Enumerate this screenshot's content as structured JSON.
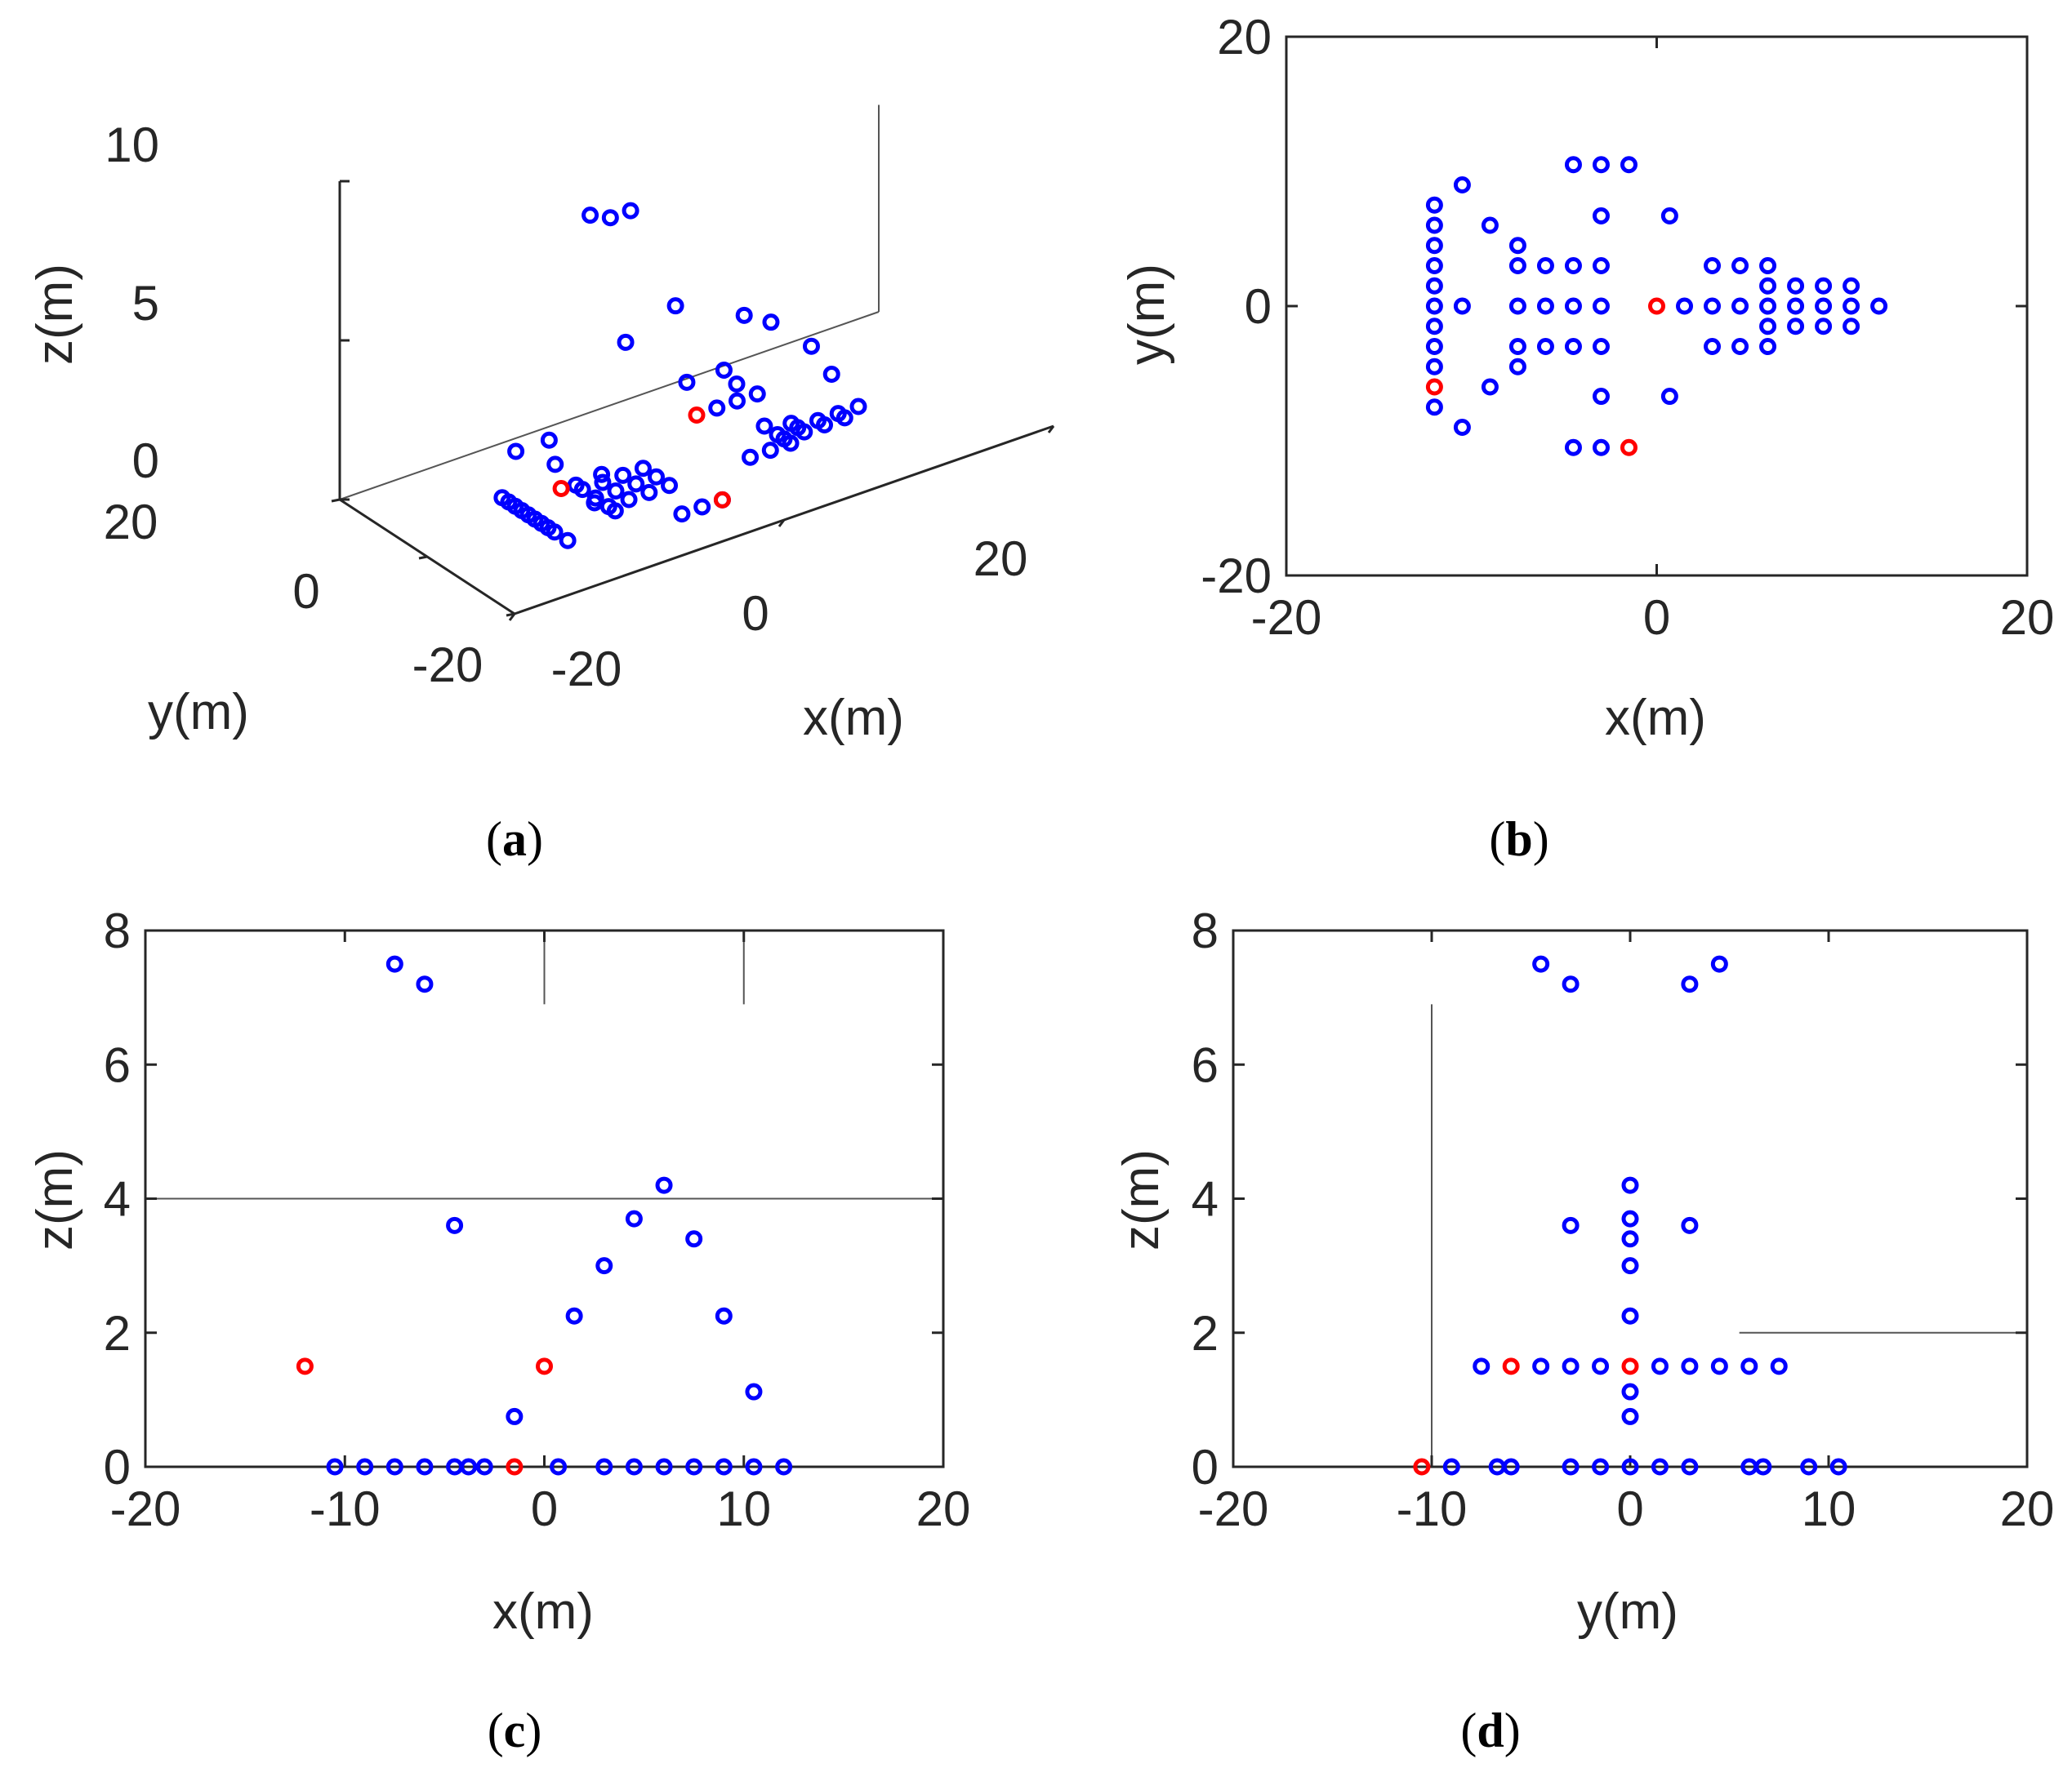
{
  "colors": {
    "normal": "#0000ff",
    "highlight": "#ff0000",
    "axis": "#262626"
  },
  "chart_data": [
    {
      "id": "a",
      "type": "scatter",
      "caption": "a",
      "projection": "3d",
      "xlabel": "x(m)",
      "ylabel": "y(m)",
      "zlabel": "z(m)",
      "xlim": [
        -20,
        20
      ],
      "ylim": [
        -20,
        20
      ],
      "zlim": [
        0,
        10
      ],
      "xticks": [
        "-20",
        "0",
        "20"
      ],
      "yticks": [
        "-20",
        "0",
        "20"
      ],
      "zticks": [
        "0",
        "5",
        "10"
      ],
      "points": {
        "normal": [
          [
            -12,
            7.5,
            0
          ],
          [
            -12,
            6,
            0
          ],
          [
            -12,
            4.5,
            0
          ],
          [
            -12,
            3,
            0
          ],
          [
            -12,
            1.5,
            0
          ],
          [
            -12,
            0,
            0
          ],
          [
            -12,
            -1.5,
            0
          ],
          [
            -12,
            -3,
            0
          ],
          [
            -12,
            -4.5,
            0
          ],
          [
            -12,
            -7.5,
            0
          ],
          [
            -10.5,
            9,
            1.1
          ],
          [
            -10.5,
            0,
            1.5
          ],
          [
            -10.5,
            -9,
            1.1
          ],
          [
            -9,
            6,
            1.5
          ],
          [
            -9,
            -6,
            1.5
          ],
          [
            -7.5,
            4.5,
            0
          ],
          [
            -7.5,
            3,
            0
          ],
          [
            -7.5,
            0,
            0
          ],
          [
            -7.5,
            -3,
            0
          ],
          [
            -7.5,
            -4.5,
            0
          ],
          [
            -6,
            3,
            0
          ],
          [
            -6,
            0,
            0
          ],
          [
            -6,
            -3,
            0
          ],
          [
            -4.5,
            3,
            0
          ],
          [
            -4.5,
            0,
            0
          ],
          [
            -4.5,
            -3,
            0
          ],
          [
            -3,
            3,
            0
          ],
          [
            -3,
            0,
            0
          ],
          [
            -3,
            -3,
            0
          ],
          [
            -4.5,
            10.5,
            7.5
          ],
          [
            -3,
            10.5,
            7.2
          ],
          [
            -1.5,
            10.5,
            7.2
          ],
          [
            -1.5,
            -10.5,
            0
          ],
          [
            -3,
            7,
            3.6
          ],
          [
            -3,
            -7,
            3.6
          ],
          [
            -4.5,
            -10.5,
            0
          ],
          [
            -3,
            -10.5,
            0
          ],
          [
            0.7,
            7,
            4.2
          ],
          [
            0.7,
            -7,
            3.0
          ],
          [
            1.5,
            0,
            1.5
          ],
          [
            3,
            3,
            2.2
          ],
          [
            3,
            0,
            1.5
          ],
          [
            3,
            -3,
            0
          ],
          [
            4.5,
            3,
            3.7
          ],
          [
            4.5,
            0,
            1.5
          ],
          [
            4.5,
            -3,
            0
          ],
          [
            6,
            3,
            0
          ],
          [
            6,
            1.5,
            3.4
          ],
          [
            6,
            0,
            0
          ],
          [
            6,
            -1.5,
            0
          ],
          [
            6,
            -3,
            0
          ],
          [
            7.5,
            1.5,
            0
          ],
          [
            7.5,
            0,
            0
          ],
          [
            7.5,
            -1.5,
            0
          ],
          [
            9,
            1.5,
            2.2
          ],
          [
            9,
            0,
            0
          ],
          [
            9,
            -1.5,
            0
          ],
          [
            10.5,
            1.5,
            1.1
          ],
          [
            10.5,
            0,
            0
          ],
          [
            10.5,
            -1.5,
            0
          ],
          [
            12,
            0,
            0
          ]
        ],
        "highlight": [
          [
            -12,
            -6,
            1.5
          ],
          [
            0,
            0,
            1.5
          ],
          [
            -1.5,
            -10.5,
            0
          ]
        ]
      }
    },
    {
      "id": "b",
      "type": "scatter",
      "caption": "b",
      "xlabel": "x(m)",
      "ylabel": "y(m)",
      "xlim": [
        -20,
        20
      ],
      "ylim": [
        -20,
        20
      ],
      "xticks": [
        -20,
        0,
        20
      ],
      "yticks": [
        -20,
        0,
        20
      ],
      "points": {
        "normal": [
          [
            -12,
            7.5
          ],
          [
            -12,
            6
          ],
          [
            -12,
            4.5
          ],
          [
            -12,
            3
          ],
          [
            -12,
            1.5
          ],
          [
            -12,
            0
          ],
          [
            -12,
            -1.5
          ],
          [
            -12,
            -3
          ],
          [
            -12,
            -4.5
          ],
          [
            -12,
            -7.5
          ],
          [
            -10.5,
            9
          ],
          [
            -10.5,
            0
          ],
          [
            -10.5,
            -9
          ],
          [
            -9,
            6
          ],
          [
            -9,
            -6
          ],
          [
            -7.5,
            4.5
          ],
          [
            -7.5,
            3
          ],
          [
            -7.5,
            0
          ],
          [
            -7.5,
            -3
          ],
          [
            -7.5,
            -4.5
          ],
          [
            -6,
            3
          ],
          [
            -6,
            0
          ],
          [
            -6,
            -3
          ],
          [
            -4.5,
            3
          ],
          [
            -4.5,
            0
          ],
          [
            -4.5,
            -3
          ],
          [
            -3,
            3
          ],
          [
            -3,
            0
          ],
          [
            -3,
            -3
          ],
          [
            -4.5,
            10.5
          ],
          [
            -3,
            10.5
          ],
          [
            -1.5,
            10.5
          ],
          [
            -3,
            6.7
          ],
          [
            -3,
            -6.7
          ],
          [
            -4.5,
            -10.5
          ],
          [
            -3,
            -10.5
          ],
          [
            0.7,
            6.7
          ],
          [
            0.7,
            -6.7
          ],
          [
            1.5,
            0
          ],
          [
            3,
            3
          ],
          [
            3,
            0
          ],
          [
            3,
            -3
          ],
          [
            4.5,
            3
          ],
          [
            4.5,
            0
          ],
          [
            4.5,
            -3
          ],
          [
            6,
            3
          ],
          [
            6,
            1.5
          ],
          [
            6,
            0
          ],
          [
            6,
            -1.5
          ],
          [
            6,
            -3
          ],
          [
            7.5,
            1.5
          ],
          [
            7.5,
            0
          ],
          [
            7.5,
            -1.5
          ],
          [
            9,
            1.5
          ],
          [
            9,
            0
          ],
          [
            9,
            -1.5
          ],
          [
            10.5,
            1.5
          ],
          [
            10.5,
            0
          ],
          [
            10.5,
            -1.5
          ],
          [
            12,
            0
          ]
        ],
        "highlight": [
          [
            -12,
            -6
          ],
          [
            0,
            0
          ],
          [
            -1.5,
            -10.5
          ]
        ]
      }
    },
    {
      "id": "c",
      "type": "scatter",
      "caption": "c",
      "xlabel": "x(m)",
      "ylabel": "z(m)",
      "xlim": [
        -20,
        20
      ],
      "ylim": [
        0,
        8
      ],
      "xticks": [
        -20,
        -10,
        0,
        10,
        20
      ],
      "yticks": [
        0,
        2,
        4,
        6,
        8
      ],
      "guides": [
        {
          "from": [
            -20,
            4
          ],
          "to": [
            20,
            4
          ]
        },
        {
          "from": [
            0,
            8
          ],
          "to": [
            0,
            6.9
          ]
        },
        {
          "from": [
            10,
            8
          ],
          "to": [
            10,
            6.9
          ]
        }
      ],
      "points": {
        "normal": [
          [
            -7.5,
            7.5
          ],
          [
            -6,
            7.2
          ],
          [
            -4.5,
            3.6
          ],
          [
            6,
            4.2
          ],
          [
            4.5,
            3.7
          ],
          [
            7.5,
            3.4
          ],
          [
            3,
            3.0
          ],
          [
            1.5,
            2.25
          ],
          [
            9,
            2.25
          ],
          [
            10.5,
            1.12
          ],
          [
            -1.5,
            0.75
          ],
          [
            -10.5,
            0
          ],
          [
            -9,
            0
          ],
          [
            -7.5,
            0
          ],
          [
            -6,
            0
          ],
          [
            -4.5,
            0
          ],
          [
            -3.8,
            0
          ],
          [
            -3,
            0
          ],
          [
            0.7,
            0
          ],
          [
            3,
            0
          ],
          [
            4.5,
            0
          ],
          [
            6,
            0
          ],
          [
            7.5,
            0
          ],
          [
            9,
            0
          ],
          [
            10.5,
            0
          ],
          [
            12,
            0
          ]
        ],
        "highlight": [
          [
            -12,
            1.5
          ],
          [
            0,
            1.5
          ],
          [
            -1.5,
            0
          ]
        ]
      }
    },
    {
      "id": "d",
      "type": "scatter",
      "caption": "d",
      "xlabel": "y(m)",
      "ylabel": "z(m)",
      "xlim": [
        -20,
        20
      ],
      "ylim": [
        0,
        8
      ],
      "xticks": [
        -20,
        -10,
        0,
        10,
        20
      ],
      "yticks": [
        0,
        2,
        4,
        6,
        8
      ],
      "guides": [
        {
          "from": [
            -10,
            0
          ],
          "to": [
            -10,
            6.9
          ]
        },
        {
          "from": [
            5.5,
            2
          ],
          "to": [
            20,
            2
          ]
        }
      ],
      "points": {
        "normal": [
          [
            -4.5,
            7.5
          ],
          [
            -3,
            7.2
          ],
          [
            3,
            7.2
          ],
          [
            4.5,
            7.5
          ],
          [
            0,
            4.2
          ],
          [
            0,
            3.7
          ],
          [
            0,
            3.4
          ],
          [
            -3,
            3.6
          ],
          [
            3,
            3.6
          ],
          [
            0,
            3.0
          ],
          [
            0,
            2.25
          ],
          [
            -7.5,
            1.5
          ],
          [
            -4.5,
            1.5
          ],
          [
            -3,
            1.5
          ],
          [
            -1.5,
            1.5
          ],
          [
            1.5,
            1.5
          ],
          [
            3,
            1.5
          ],
          [
            4.5,
            1.5
          ],
          [
            6,
            1.5
          ],
          [
            7.5,
            1.5
          ],
          [
            0,
            1.12
          ],
          [
            0,
            0.75
          ],
          [
            -9,
            0
          ],
          [
            -6.7,
            0
          ],
          [
            -6,
            0
          ],
          [
            -3,
            0
          ],
          [
            -1.5,
            0
          ],
          [
            0,
            0
          ],
          [
            1.5,
            0
          ],
          [
            3,
            0
          ],
          [
            6,
            0
          ],
          [
            6.7,
            0
          ],
          [
            9,
            0
          ],
          [
            10.5,
            0
          ]
        ],
        "highlight": [
          [
            -6,
            1.5
          ],
          [
            0,
            1.5
          ],
          [
            -10.5,
            0
          ]
        ]
      }
    }
  ]
}
